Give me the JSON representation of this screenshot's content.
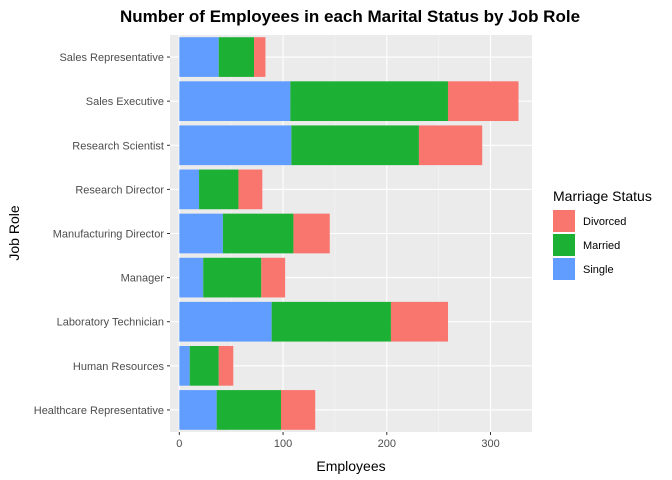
{
  "chart_data": {
    "type": "bar",
    "orientation": "horizontal",
    "stacked": true,
    "title": "Number of Employees in each Marital Status by Job Role",
    "xlabel": "Employees",
    "ylabel": "Job Role",
    "xlim": [
      -9,
      340
    ],
    "xticks": [
      0,
      100,
      200,
      300
    ],
    "grid": true,
    "legend_placement": "right",
    "legend_title": "Marriage Status",
    "categories": [
      "Healthcare Representative",
      "Human Resources",
      "Laboratory Technician",
      "Manager",
      "Manufacturing Director",
      "Research Director",
      "Research Scientist",
      "Sales Executive",
      "Sales Representative"
    ],
    "series": [
      {
        "name": "Single",
        "color": "#619CFF",
        "values": [
          36,
          10,
          89,
          23,
          42,
          19,
          108,
          107,
          38
        ]
      },
      {
        "name": "Married",
        "color": "#1CB134",
        "values": [
          62,
          28,
          115,
          56,
          68,
          38,
          123,
          152,
          34
        ]
      },
      {
        "name": "Divorced",
        "color": "#F8766D",
        "values": [
          33,
          14,
          55,
          23,
          35,
          23,
          61,
          68,
          11
        ]
      }
    ],
    "legend_order": [
      "Divorced",
      "Married",
      "Single"
    ]
  }
}
